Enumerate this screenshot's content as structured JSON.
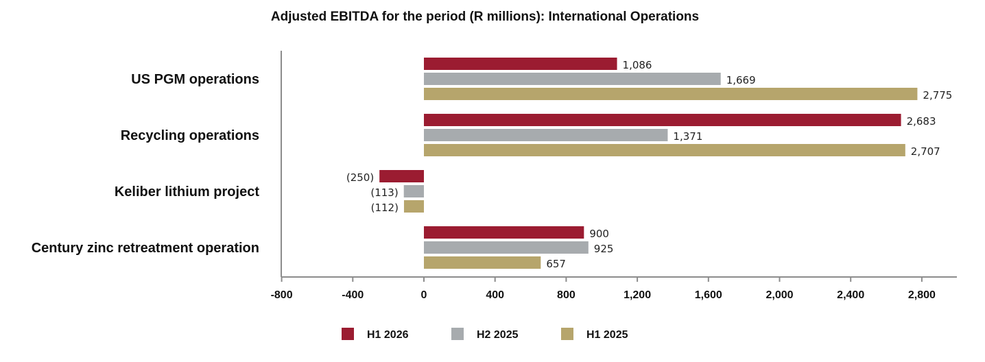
{
  "colors": {
    "H1 2026": "#9b1c31",
    "H2 2025": "#a7abae",
    "H1 2025": "#b6a56c",
    "axis": "#8c8c8c"
  },
  "chart_data": {
    "type": "bar",
    "orientation": "horizontal",
    "title": "Adjusted EBITDA for the period (R millions): International Operations",
    "categories": [
      "US PGM operations",
      "Recycling operations",
      "Keliber lithium project",
      "Century zinc retreatment operation"
    ],
    "series": [
      {
        "name": "H1 2026",
        "values": [
          1086,
          2683,
          -250,
          900
        ],
        "labels": [
          "1,086",
          "2,683",
          "(250)",
          "900"
        ]
      },
      {
        "name": "H2 2025",
        "values": [
          1669,
          1371,
          -113,
          925
        ],
        "labels": [
          "1,669",
          "1,371",
          "(113)",
          "925"
        ]
      },
      {
        "name": "H1 2025",
        "values": [
          2775,
          2707,
          -112,
          657
        ],
        "labels": [
          "2,775",
          "2,707",
          "(112)",
          "657"
        ]
      }
    ],
    "xlim": [
      -800,
      3000
    ],
    "xticks": [
      -800,
      -400,
      0,
      400,
      800,
      1200,
      1600,
      2000,
      2400,
      2800
    ],
    "xtick_labels": [
      "-800",
      "-400",
      "0",
      "400",
      "800",
      "1,200",
      "1,600",
      "2,000",
      "2,400",
      "2,800"
    ],
    "grid": false,
    "legend_position": "bottom"
  }
}
